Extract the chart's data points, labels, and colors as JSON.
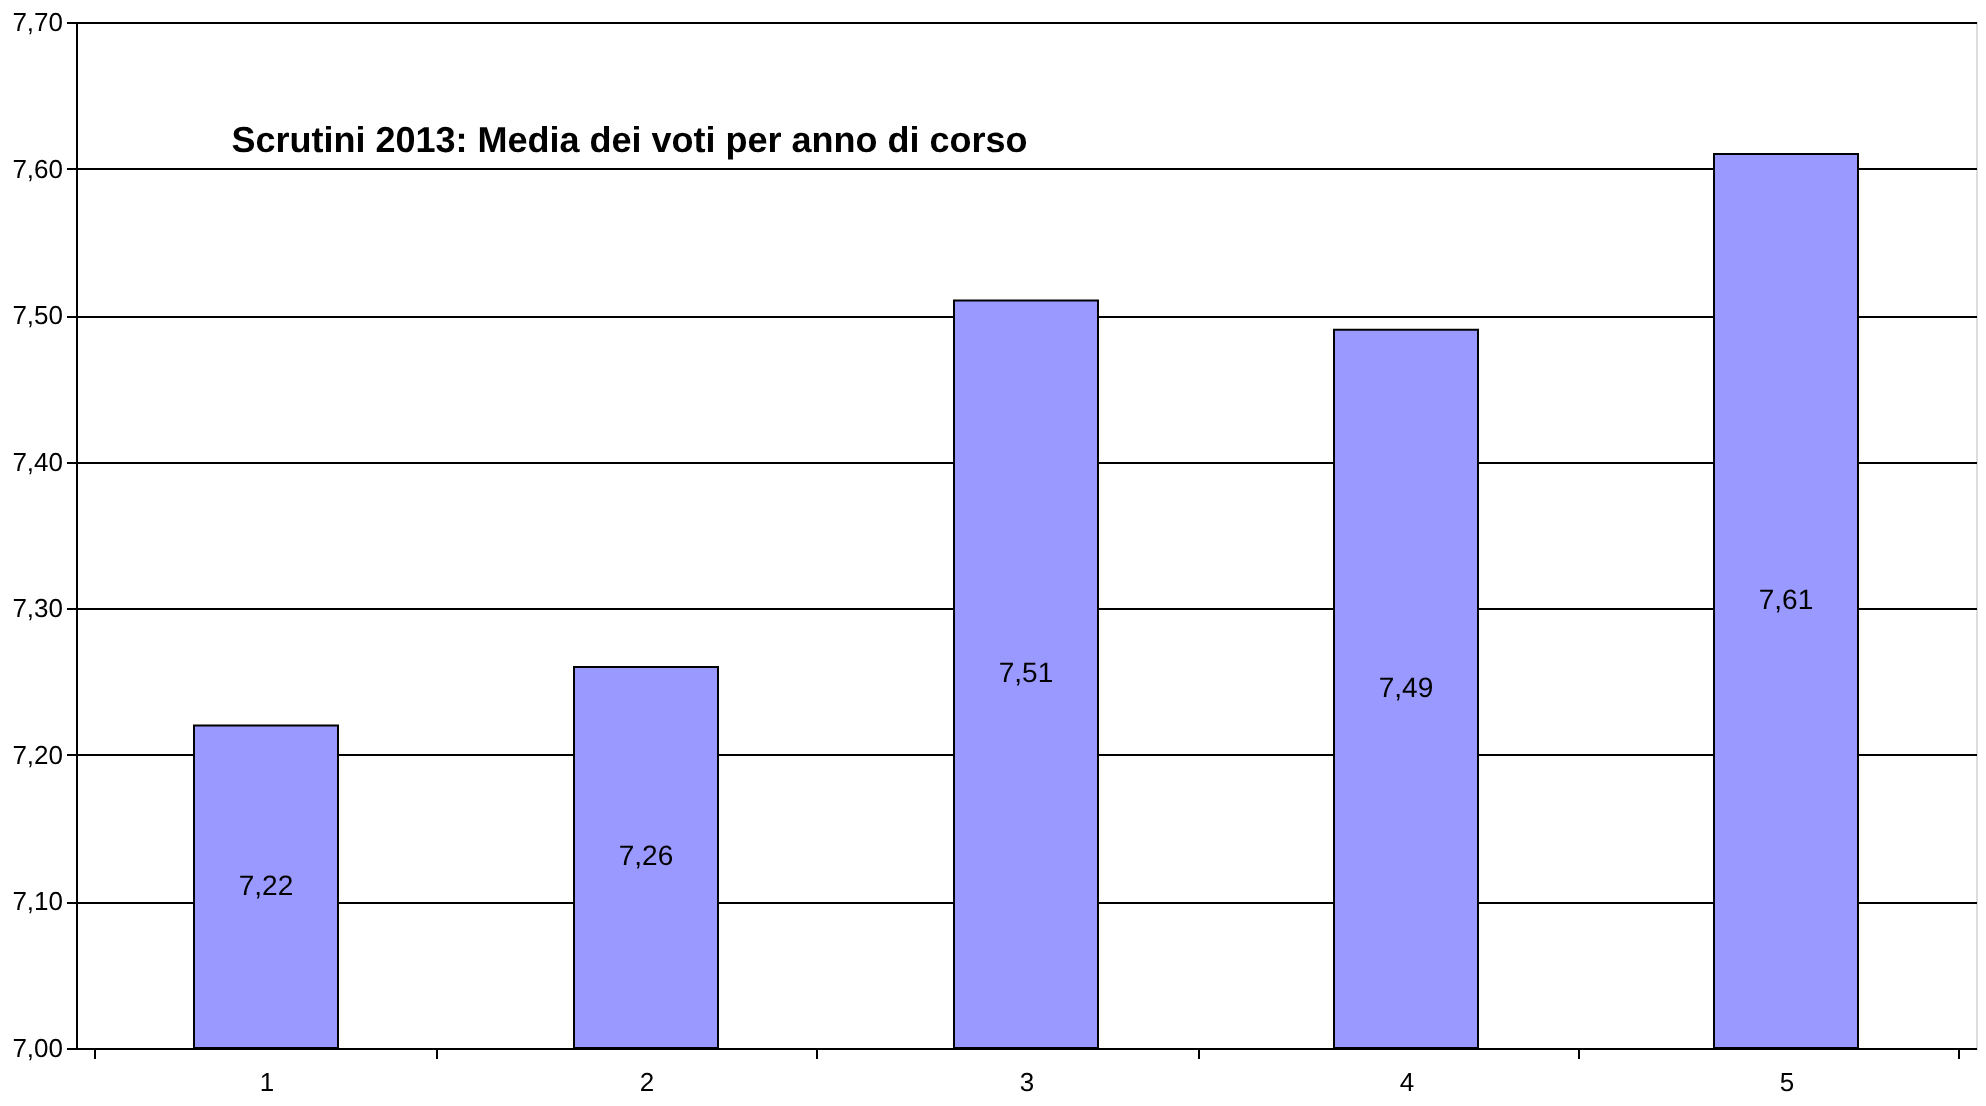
{
  "chart_data": {
    "type": "bar",
    "title": "Scrutini 2013: Media dei voti per anno di corso",
    "categories": [
      "1",
      "2",
      "3",
      "4",
      "5"
    ],
    "values": [
      7.22,
      7.26,
      7.51,
      7.49,
      7.61
    ],
    "value_labels": [
      "7,22",
      "7,26",
      "7,51",
      "7,49",
      "7,61"
    ],
    "color": "#9999ff",
    "ylim": [
      7.0,
      7.7
    ],
    "yticks": [
      {
        "value": 7.0,
        "label": "7,00"
      },
      {
        "value": 7.1,
        "label": "7,10"
      },
      {
        "value": 7.2,
        "label": "7,20"
      },
      {
        "value": 7.3,
        "label": "7,30"
      },
      {
        "value": 7.4,
        "label": "7,40"
      },
      {
        "value": 7.5,
        "label": "7,50"
      },
      {
        "value": 7.6,
        "label": "7,60"
      },
      {
        "value": 7.7,
        "label": "7,70"
      }
    ],
    "grid": "y"
  }
}
